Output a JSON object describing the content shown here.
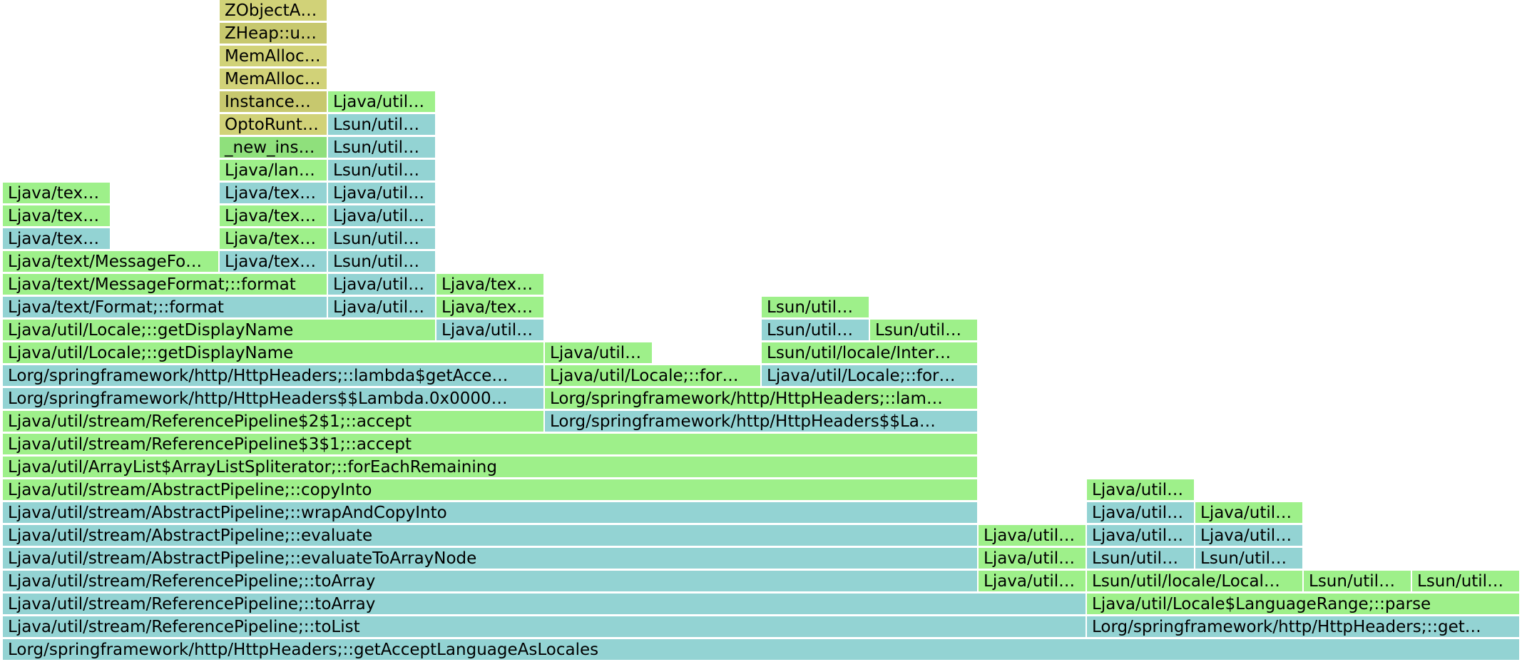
{
  "colors": {
    "green": "#9ef08a",
    "green-dark": "#8fe07c",
    "teal": "#93d3d3",
    "teal-dark": "#87c8c8",
    "olive": "#d1d278",
    "olive-dark": "#c7c86e"
  },
  "chart_data": {
    "type": "flame",
    "title": "",
    "units": "samples",
    "total": 28,
    "frames": [
      {
        "depth": 0,
        "x0": 0,
        "x1": 28,
        "label": "Lorg/springframework/http/HttpHeaders;::getAcceptLanguageAsLocales",
        "color": "teal"
      },
      {
        "depth": 1,
        "x0": 0,
        "x1": 20,
        "label": "Ljava/util/stream/ReferencePipeline;::toList",
        "color": "teal"
      },
      {
        "depth": 1,
        "x0": 20,
        "x1": 28,
        "label": "Lorg/springframework/http/HttpHeaders;::get…",
        "color": "teal"
      },
      {
        "depth": 2,
        "x0": 0,
        "x1": 20,
        "label": "Ljava/util/stream/ReferencePipeline;::toArray",
        "color": "teal"
      },
      {
        "depth": 2,
        "x0": 20,
        "x1": 28,
        "label": "Ljava/util/Locale$LanguageRange;::parse",
        "color": "green"
      },
      {
        "depth": 3,
        "x0": 0,
        "x1": 18,
        "label": "Ljava/util/stream/ReferencePipeline;::toArray",
        "color": "teal"
      },
      {
        "depth": 3,
        "x0": 18,
        "x1": 20,
        "label": "Ljava/util…",
        "color": "green"
      },
      {
        "depth": 3,
        "x0": 20,
        "x1": 24,
        "label": "Lsun/util/locale/Local…",
        "color": "green"
      },
      {
        "depth": 3,
        "x0": 24,
        "x1": 26,
        "label": "Lsun/util…",
        "color": "green"
      },
      {
        "depth": 3,
        "x0": 26,
        "x1": 28,
        "label": "Lsun/util…",
        "color": "green"
      },
      {
        "depth": 4,
        "x0": 0,
        "x1": 18,
        "label": "Ljava/util/stream/AbstractPipeline;::evaluateToArrayNode",
        "color": "teal"
      },
      {
        "depth": 4,
        "x0": 18,
        "x1": 20,
        "label": "Ljava/util…",
        "color": "green"
      },
      {
        "depth": 4,
        "x0": 20,
        "x1": 22,
        "label": "Lsun/util…",
        "color": "teal"
      },
      {
        "depth": 4,
        "x0": 22,
        "x1": 24,
        "label": "Lsun/util…",
        "color": "teal"
      },
      {
        "depth": 5,
        "x0": 0,
        "x1": 18,
        "label": "Ljava/util/stream/AbstractPipeline;::evaluate",
        "color": "teal"
      },
      {
        "depth": 5,
        "x0": 18,
        "x1": 20,
        "label": "Ljava/util…",
        "color": "green"
      },
      {
        "depth": 5,
        "x0": 20,
        "x1": 22,
        "label": "Ljava/util…",
        "color": "teal"
      },
      {
        "depth": 5,
        "x0": 22,
        "x1": 24,
        "label": "Ljava/util…",
        "color": "teal"
      },
      {
        "depth": 6,
        "x0": 0,
        "x1": 18,
        "label": "Ljava/util/stream/AbstractPipeline;::wrapAndCopyInto",
        "color": "teal"
      },
      {
        "depth": 6,
        "x0": 20,
        "x1": 22,
        "label": "Ljava/util…",
        "color": "teal"
      },
      {
        "depth": 6,
        "x0": 22,
        "x1": 24,
        "label": "Ljava/util…",
        "color": "green"
      },
      {
        "depth": 7,
        "x0": 0,
        "x1": 18,
        "label": "Ljava/util/stream/AbstractPipeline;::copyInto",
        "color": "green"
      },
      {
        "depth": 7,
        "x0": 20,
        "x1": 22,
        "label": "Ljava/util…",
        "color": "green"
      },
      {
        "depth": 8,
        "x0": 0,
        "x1": 18,
        "label": "Ljava/util/ArrayList$ArrayListSpliterator;::forEachRemaining",
        "color": "green"
      },
      {
        "depth": 9,
        "x0": 0,
        "x1": 18,
        "label": "Ljava/util/stream/ReferencePipeline$3$1;::accept",
        "color": "green"
      },
      {
        "depth": 10,
        "x0": 0,
        "x1": 10,
        "label": "Ljava/util/stream/ReferencePipeline$2$1;::accept",
        "color": "green"
      },
      {
        "depth": 10,
        "x0": 10,
        "x1": 18,
        "label": "Lorg/springframework/http/HttpHeaders$$La…",
        "color": "teal"
      },
      {
        "depth": 11,
        "x0": 0,
        "x1": 10,
        "label": "Lorg/springframework/http/HttpHeaders$$Lambda.0x0000…",
        "color": "teal"
      },
      {
        "depth": 11,
        "x0": 10,
        "x1": 18,
        "label": "Lorg/springframework/http/HttpHeaders;::lam…",
        "color": "green"
      },
      {
        "depth": 12,
        "x0": 0,
        "x1": 10,
        "label": "Lorg/springframework/http/HttpHeaders;::lambda$getAcce…",
        "color": "teal"
      },
      {
        "depth": 12,
        "x0": 10,
        "x1": 14,
        "label": "Ljava/util/Locale;::for…",
        "color": "green"
      },
      {
        "depth": 12,
        "x0": 14,
        "x1": 18,
        "label": "Ljava/util/Locale;::for…",
        "color": "teal"
      },
      {
        "depth": 13,
        "x0": 0,
        "x1": 10,
        "label": "Ljava/util/Locale;::getDisplayName",
        "color": "green"
      },
      {
        "depth": 13,
        "x0": 10,
        "x1": 12,
        "label": "Ljava/util…",
        "color": "green"
      },
      {
        "depth": 13,
        "x0": 14,
        "x1": 18,
        "label": "Lsun/util/locale/Inter…",
        "color": "green"
      },
      {
        "depth": 14,
        "x0": 0,
        "x1": 8,
        "label": "Ljava/util/Locale;::getDisplayName",
        "color": "green"
      },
      {
        "depth": 14,
        "x0": 8,
        "x1": 10,
        "label": "Ljava/util…",
        "color": "teal"
      },
      {
        "depth": 14,
        "x0": 14,
        "x1": 16,
        "label": "Lsun/util…",
        "color": "teal"
      },
      {
        "depth": 14,
        "x0": 16,
        "x1": 18,
        "label": "Lsun/util…",
        "color": "green"
      },
      {
        "depth": 15,
        "x0": 0,
        "x1": 6,
        "label": "Ljava/text/Format;::format",
        "color": "teal"
      },
      {
        "depth": 15,
        "x0": 6,
        "x1": 8,
        "label": "Ljava/util…",
        "color": "teal"
      },
      {
        "depth": 15,
        "x0": 8,
        "x1": 10,
        "label": "Ljava/tex…",
        "color": "green"
      },
      {
        "depth": 15,
        "x0": 14,
        "x1": 16,
        "label": "Lsun/util…",
        "color": "green"
      },
      {
        "depth": 16,
        "x0": 0,
        "x1": 6,
        "label": "Ljava/text/MessageFormat;::format",
        "color": "green"
      },
      {
        "depth": 16,
        "x0": 6,
        "x1": 8,
        "label": "Ljava/util…",
        "color": "teal"
      },
      {
        "depth": 16,
        "x0": 8,
        "x1": 10,
        "label": "Ljava/tex…",
        "color": "green"
      },
      {
        "depth": 17,
        "x0": 0,
        "x1": 4,
        "label": "Ljava/text/MessageFo…",
        "color": "green"
      },
      {
        "depth": 17,
        "x0": 4,
        "x1": 6,
        "label": "Ljava/tex…",
        "color": "teal"
      },
      {
        "depth": 17,
        "x0": 6,
        "x1": 8,
        "label": "Lsun/util…",
        "color": "teal"
      },
      {
        "depth": 18,
        "x0": 0,
        "x1": 2,
        "label": "Ljava/tex…",
        "color": "teal"
      },
      {
        "depth": 18,
        "x0": 4,
        "x1": 6,
        "label": "Ljava/tex…",
        "color": "green"
      },
      {
        "depth": 18,
        "x0": 6,
        "x1": 8,
        "label": "Lsun/util…",
        "color": "teal"
      },
      {
        "depth": 19,
        "x0": 0,
        "x1": 2,
        "label": "Ljava/tex…",
        "color": "green"
      },
      {
        "depth": 19,
        "x0": 4,
        "x1": 6,
        "label": "Ljava/tex…",
        "color": "green"
      },
      {
        "depth": 19,
        "x0": 6,
        "x1": 8,
        "label": "Ljava/util…",
        "color": "teal"
      },
      {
        "depth": 20,
        "x0": 0,
        "x1": 2,
        "label": "Ljava/tex…",
        "color": "green"
      },
      {
        "depth": 20,
        "x0": 4,
        "x1": 6,
        "label": "Ljava/tex…",
        "color": "teal"
      },
      {
        "depth": 20,
        "x0": 6,
        "x1": 8,
        "label": "Ljava/util…",
        "color": "teal"
      },
      {
        "depth": 21,
        "x0": 4,
        "x1": 6,
        "label": "Ljava/lan…",
        "color": "green"
      },
      {
        "depth": 21,
        "x0": 6,
        "x1": 8,
        "label": "Lsun/util…",
        "color": "teal"
      },
      {
        "depth": 22,
        "x0": 4,
        "x1": 6,
        "label": "_new_ins…",
        "color": "green-dark"
      },
      {
        "depth": 22,
        "x0": 6,
        "x1": 8,
        "label": "Lsun/util…",
        "color": "teal"
      },
      {
        "depth": 23,
        "x0": 4,
        "x1": 6,
        "label": "OptoRunt…",
        "color": "olive"
      },
      {
        "depth": 23,
        "x0": 6,
        "x1": 8,
        "label": "Lsun/util…",
        "color": "teal"
      },
      {
        "depth": 24,
        "x0": 4,
        "x1": 6,
        "label": "Instance…",
        "color": "olive-dark"
      },
      {
        "depth": 24,
        "x0": 6,
        "x1": 8,
        "label": "Ljava/util…",
        "color": "green"
      },
      {
        "depth": 25,
        "x0": 4,
        "x1": 6,
        "label": "MemAlloc…",
        "color": "olive"
      },
      {
        "depth": 26,
        "x0": 4,
        "x1": 6,
        "label": "MemAlloc…",
        "color": "olive"
      },
      {
        "depth": 27,
        "x0": 4,
        "x1": 6,
        "label": "ZHeap::u…",
        "color": "olive-dark"
      },
      {
        "depth": 28,
        "x0": 4,
        "x1": 6,
        "label": "ZObjectA…",
        "color": "olive"
      }
    ]
  }
}
